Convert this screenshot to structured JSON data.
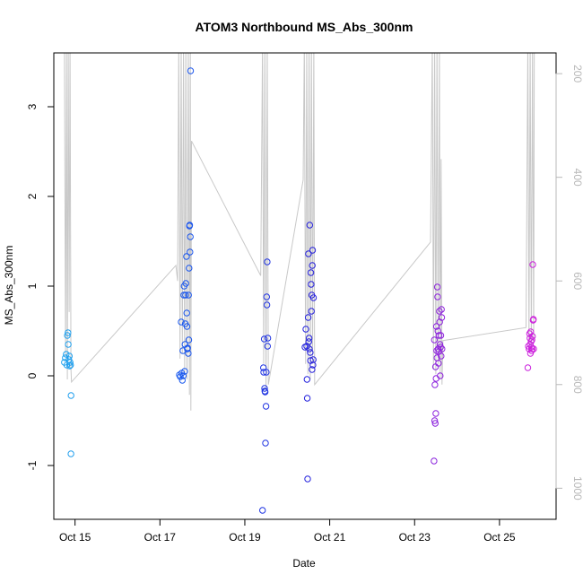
{
  "chart_data": {
    "type": "scatter",
    "title": "ATOM3 Northbound MS_Abs_300nm",
    "xlabel": "Date",
    "ylabel": "MS_Abs_300nm",
    "x_is_date": true,
    "x_ticks": [
      {
        "value": "2016-10-15",
        "label": "Oct 15"
      },
      {
        "value": "2016-10-17",
        "label": "Oct 17"
      },
      {
        "value": "2016-10-19",
        "label": "Oct 19"
      },
      {
        "value": "2016-10-21",
        "label": "Oct 21"
      },
      {
        "value": "2016-10-23",
        "label": "Oct 23"
      },
      {
        "value": "2016-10-25",
        "label": "Oct 25"
      }
    ],
    "xlim": [
      "2016-10-14T12:00",
      "2016-10-26T08:00"
    ],
    "y_ticks": [
      -1,
      0,
      1,
      2,
      3
    ],
    "ylim": [
      -1.6,
      3.6
    ],
    "right_axis": {
      "label": "",
      "ticks": [
        200,
        400,
        600,
        800,
        1000
      ],
      "reversed": true,
      "lim": [
        160,
        1060
      ],
      "color": "#b8b8b8"
    },
    "grid": false,
    "legend": "none",
    "point_style": "open-circle",
    "color_gradient": [
      "#22aaee",
      "#1a5aee",
      "#2222dd",
      "#8822dd",
      "#dd22dd"
    ],
    "series": [
      {
        "points": [
          [
            "2016-10-14T18:00",
            0.15
          ],
          [
            "2016-10-14T18:30",
            0.2
          ],
          [
            "2016-10-14T19:00",
            0.24
          ],
          [
            "2016-10-14T19:20",
            0.12
          ],
          [
            "2016-10-14T19:40",
            0.45
          ],
          [
            "2016-10-14T20:00",
            0.48
          ],
          [
            "2016-10-14T20:10",
            0.35
          ],
          [
            "2016-10-14T20:30",
            0.18
          ],
          [
            "2016-10-14T20:45",
            0.22
          ],
          [
            "2016-10-14T21:00",
            0.11
          ],
          [
            "2016-10-14T21:15",
            0.15
          ],
          [
            "2016-10-14T21:30",
            0.12
          ],
          [
            "2016-10-14T21:45",
            -0.22
          ],
          [
            "2016-10-14T21:40",
            -0.87
          ]
        ]
      },
      {
        "points": [
          [
            "2016-10-17T11:00",
            0.01
          ],
          [
            "2016-10-17T11:30",
            -0.01
          ],
          [
            "2016-10-17T12:00",
            0.6
          ],
          [
            "2016-10-17T12:20",
            0.03
          ],
          [
            "2016-10-17T12:40",
            -0.05
          ],
          [
            "2016-10-17T13:00",
            0.28
          ],
          [
            "2016-10-17T13:10",
            0.0
          ],
          [
            "2016-10-17T13:30",
            0.9
          ],
          [
            "2016-10-17T13:40",
            1.0
          ],
          [
            "2016-10-17T14:00",
            0.05
          ],
          [
            "2016-10-17T14:10",
            0.35
          ],
          [
            "2016-10-17T14:20",
            0.58
          ],
          [
            "2016-10-17T14:30",
            0.9
          ],
          [
            "2016-10-17T14:40",
            1.03
          ],
          [
            "2016-10-17T15:00",
            1.33
          ],
          [
            "2016-10-17T15:10",
            0.7
          ],
          [
            "2016-10-17T15:20",
            0.55
          ],
          [
            "2016-10-17T15:30",
            0.3
          ],
          [
            "2016-10-17T15:40",
            0.31
          ],
          [
            "2016-10-17T16:00",
            0.25
          ],
          [
            "2016-10-17T16:10",
            0.9
          ],
          [
            "2016-10-17T16:20",
            0.4
          ],
          [
            "2016-10-17T16:30",
            1.2
          ],
          [
            "2016-10-17T16:40",
            1.67
          ],
          [
            "2016-10-17T16:50",
            1.68
          ],
          [
            "2016-10-17T17:00",
            1.38
          ],
          [
            "2016-10-17T17:10",
            1.55
          ],
          [
            "2016-10-17T17:20",
            3.4
          ]
        ]
      },
      {
        "points": [
          [
            "2016-10-19T10:00",
            -1.5
          ],
          [
            "2016-10-19T10:30",
            0.09
          ],
          [
            "2016-10-19T10:40",
            0.04
          ],
          [
            "2016-10-19T11:00",
            0.41
          ],
          [
            "2016-10-19T11:10",
            -0.14
          ],
          [
            "2016-10-19T11:20",
            -0.17
          ],
          [
            "2016-10-19T11:30",
            -0.18
          ],
          [
            "2016-10-19T11:40",
            -0.75
          ],
          [
            "2016-10-19T12:00",
            -0.34
          ],
          [
            "2016-10-19T12:10",
            0.04
          ],
          [
            "2016-10-19T12:20",
            0.88
          ],
          [
            "2016-10-19T12:30",
            0.79
          ],
          [
            "2016-10-19T12:40",
            1.27
          ],
          [
            "2016-10-19T12:50",
            0.33
          ],
          [
            "2016-10-19T13:00",
            0.42
          ]
        ]
      },
      {
        "points": [
          [
            "2016-10-20T10:00",
            0.32
          ],
          [
            "2016-10-20T10:30",
            0.52
          ],
          [
            "2016-10-20T11:00",
            0.33
          ],
          [
            "2016-10-20T11:10",
            -0.04
          ],
          [
            "2016-10-20T11:20",
            -0.25
          ],
          [
            "2016-10-20T11:30",
            -1.15
          ],
          [
            "2016-10-20T11:50",
            0.65
          ],
          [
            "2016-10-20T12:00",
            1.36
          ],
          [
            "2016-10-20T12:10",
            0.38
          ],
          [
            "2016-10-20T12:20",
            0.42
          ],
          [
            "2016-10-20T12:30",
            0.3
          ],
          [
            "2016-10-20T12:40",
            1.68
          ],
          [
            "2016-10-20T13:00",
            0.26
          ],
          [
            "2016-10-20T13:10",
            0.17
          ],
          [
            "2016-10-20T13:20",
            1.15
          ],
          [
            "2016-10-20T13:30",
            1.02
          ],
          [
            "2016-10-20T13:40",
            0.72
          ],
          [
            "2016-10-20T13:50",
            0.9
          ],
          [
            "2016-10-20T14:00",
            0.07
          ],
          [
            "2016-10-20T14:10",
            1.23
          ],
          [
            "2016-10-20T14:20",
            1.4
          ],
          [
            "2016-10-20T14:30",
            0.12
          ],
          [
            "2016-10-20T14:40",
            0.18
          ],
          [
            "2016-10-20T14:50",
            0.87
          ]
        ]
      },
      {
        "points": [
          [
            "2016-10-23T11:00",
            -0.95
          ],
          [
            "2016-10-23T11:10",
            0.4
          ],
          [
            "2016-10-23T11:20",
            -0.5
          ],
          [
            "2016-10-23T11:30",
            -0.1
          ],
          [
            "2016-10-23T11:40",
            -0.53
          ],
          [
            "2016-10-23T11:50",
            0.1
          ],
          [
            "2016-10-23T12:00",
            -0.42
          ],
          [
            "2016-10-23T12:10",
            -0.03
          ],
          [
            "2016-10-23T12:20",
            0.55
          ],
          [
            "2016-10-23T12:30",
            0.28
          ],
          [
            "2016-10-23T12:40",
            0.2
          ],
          [
            "2016-10-23T12:50",
            0.99
          ],
          [
            "2016-10-23T13:00",
            0.88
          ],
          [
            "2016-10-23T13:10",
            0.5
          ],
          [
            "2016-10-23T13:20",
            0.3
          ],
          [
            "2016-10-23T13:30",
            0.14
          ],
          [
            "2016-10-23T13:40",
            0.27
          ],
          [
            "2016-10-23T13:50",
            0.45
          ],
          [
            "2016-10-23T14:00",
            0.72
          ],
          [
            "2016-10-23T14:10",
            0.6
          ],
          [
            "2016-10-23T14:20",
            0.35
          ],
          [
            "2016-10-23T14:30",
            0.0
          ],
          [
            "2016-10-23T14:40",
            0.32
          ],
          [
            "2016-10-23T14:50",
            0.45
          ],
          [
            "2016-10-23T15:00",
            0.22
          ],
          [
            "2016-10-23T15:10",
            0.74
          ],
          [
            "2016-10-23T15:20",
            0.65
          ],
          [
            "2016-10-23T15:30",
            0.3
          ]
        ]
      },
      {
        "points": [
          [
            "2016-10-25T16:00",
            0.09
          ],
          [
            "2016-10-25T16:20",
            0.33
          ],
          [
            "2016-10-25T16:40",
            0.3
          ],
          [
            "2016-10-25T17:00",
            0.47
          ],
          [
            "2016-10-25T17:10",
            0.42
          ],
          [
            "2016-10-25T17:20",
            0.35
          ],
          [
            "2016-10-25T17:30",
            0.25
          ],
          [
            "2016-10-25T17:40",
            0.49
          ],
          [
            "2016-10-25T17:50",
            0.38
          ],
          [
            "2016-10-25T18:00",
            0.32
          ],
          [
            "2016-10-25T18:10",
            0.28
          ],
          [
            "2016-10-25T18:20",
            0.4
          ],
          [
            "2016-10-25T18:30",
            0.3
          ],
          [
            "2016-10-25T18:40",
            0.44
          ],
          [
            "2016-10-25T18:50",
            1.24
          ],
          [
            "2016-10-25T19:00",
            0.62
          ],
          [
            "2016-10-25T19:10",
            0.63
          ],
          [
            "2016-10-25T19:20",
            0.3
          ]
        ]
      }
    ],
    "altitude_line": {
      "axis": "right",
      "color": "#c8c8c8",
      "points": [
        [
          "2016-10-14T17:00",
          140
        ],
        [
          "2016-10-14T18:00",
          140
        ],
        [
          "2016-10-14T18:40",
          745
        ],
        [
          "2016-10-14T19:10",
          140
        ],
        [
          "2016-10-14T19:40",
          790
        ],
        [
          "2016-10-14T20:10",
          140
        ],
        [
          "2016-10-14T20:40",
          660
        ],
        [
          "2016-10-14T21:10",
          140
        ],
        [
          "2016-10-14T21:40",
          770
        ],
        [
          "2016-10-14T22:00",
          795
        ],
        [
          "2016-10-17T09:00",
          570
        ],
        [
          "2016-10-17T10:00",
          600
        ],
        [
          "2016-10-17T10:40",
          140
        ],
        [
          "2016-10-17T11:20",
          750
        ],
        [
          "2016-10-17T12:00",
          140
        ],
        [
          "2016-10-17T12:40",
          740
        ],
        [
          "2016-10-17T13:20",
          140
        ],
        [
          "2016-10-17T14:00",
          780
        ],
        [
          "2016-10-17T14:40",
          140
        ],
        [
          "2016-10-17T15:20",
          790
        ],
        [
          "2016-10-17T16:00",
          140
        ],
        [
          "2016-10-17T16:40",
          820
        ],
        [
          "2016-10-17T17:10",
          140
        ],
        [
          "2016-10-17T17:30",
          850
        ],
        [
          "2016-10-17T17:50",
          330
        ],
        [
          "2016-10-19T09:00",
          590
        ],
        [
          "2016-10-19T10:00",
          140
        ],
        [
          "2016-10-19T10:40",
          760
        ],
        [
          "2016-10-19T11:20",
          140
        ],
        [
          "2016-10-19T12:00",
          810
        ],
        [
          "2016-10-19T12:40",
          140
        ],
        [
          "2016-10-19T13:20",
          800
        ],
        [
          "2016-10-20T09:00",
          405
        ],
        [
          "2016-10-20T09:40",
          140
        ],
        [
          "2016-10-20T10:20",
          760
        ],
        [
          "2016-10-20T11:00",
          140
        ],
        [
          "2016-10-20T11:40",
          780
        ],
        [
          "2016-10-20T12:20",
          140
        ],
        [
          "2016-10-20T13:00",
          790
        ],
        [
          "2016-10-20T13:40",
          140
        ],
        [
          "2016-10-20T14:20",
          760
        ],
        [
          "2016-10-20T15:00",
          140
        ],
        [
          "2016-10-20T15:30",
          800
        ],
        [
          "2016-10-23T09:00",
          525
        ],
        [
          "2016-10-23T10:00",
          140
        ],
        [
          "2016-10-23T10:40",
          770
        ],
        [
          "2016-10-23T11:20",
          140
        ],
        [
          "2016-10-23T12:00",
          780
        ],
        [
          "2016-10-23T12:40",
          140
        ],
        [
          "2016-10-23T13:20",
          760
        ],
        [
          "2016-10-23T14:00",
          140
        ],
        [
          "2016-10-23T14:30",
          790
        ],
        [
          "2016-10-23T15:00",
          365
        ],
        [
          "2016-10-23T15:30",
          800
        ],
        [
          "2016-10-23T16:00",
          715
        ],
        [
          "2016-10-25T15:00",
          690
        ],
        [
          "2016-10-25T16:00",
          140
        ],
        [
          "2016-10-25T16:40",
          720
        ],
        [
          "2016-10-25T17:20",
          140
        ],
        [
          "2016-10-25T18:00",
          730
        ],
        [
          "2016-10-25T18:40",
          140
        ],
        [
          "2016-10-25T19:20",
          715
        ],
        [
          "2016-10-25T19:40",
          140
        ]
      ]
    }
  }
}
